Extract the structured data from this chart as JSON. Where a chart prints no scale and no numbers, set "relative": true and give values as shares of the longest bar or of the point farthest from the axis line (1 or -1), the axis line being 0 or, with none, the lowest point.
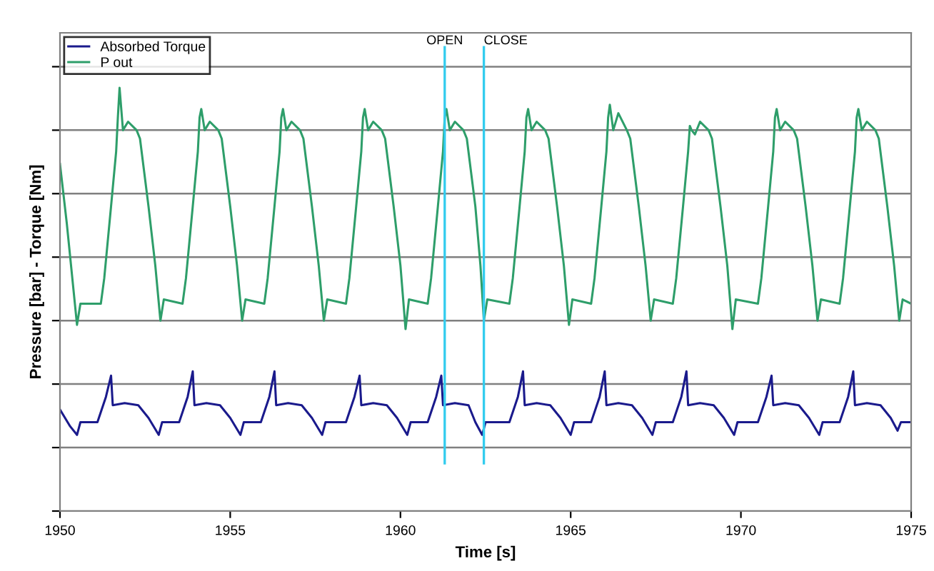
{
  "chart_data": {
    "type": "line",
    "relative": true,
    "xlabel": "Time [s]",
    "ylabel": "Pressure [bar] - Torque [Nm]",
    "xlim": [
      1950,
      1975
    ],
    "xticks": [
      1950,
      1955,
      1960,
      1965,
      1970,
      1975
    ],
    "grid": "y",
    "legend": "top left",
    "marker": "none",
    "line_style": "solid",
    "ref_lines": [
      {
        "axis": "x",
        "value": 1961.3,
        "label": "OPEN",
        "color": "#33ccee"
      },
      {
        "axis": "x",
        "value": 1962.45,
        "label": "CLOSE",
        "color": "#33ccee"
      }
    ],
    "series": [
      {
        "name": "Absorbed Torque",
        "color": "#1a1a8c",
        "x": [
          1950.0,
          1950.3,
          1950.5,
          1950.6,
          1951.1,
          1951.35,
          1951.5,
          1951.55,
          1951.9,
          1952.3,
          1952.6,
          1952.9,
          1953.0,
          1953.5,
          1953.75,
          1953.9,
          1953.95,
          1954.3,
          1954.7,
          1955.0,
          1955.3,
          1955.4,
          1955.9,
          1956.15,
          1956.3,
          1956.35,
          1956.7,
          1957.1,
          1957.4,
          1957.7,
          1957.8,
          1958.4,
          1958.65,
          1958.8,
          1958.85,
          1959.2,
          1959.6,
          1959.9,
          1960.2,
          1960.3,
          1960.8,
          1961.05,
          1961.2,
          1961.25,
          1961.6,
          1962.0,
          1962.2,
          1962.4,
          1962.5,
          1963.2,
          1963.45,
          1963.6,
          1963.65,
          1964.0,
          1964.4,
          1964.7,
          1965.0,
          1965.1,
          1965.6,
          1965.85,
          1966.0,
          1966.05,
          1966.4,
          1966.8,
          1967.1,
          1967.4,
          1967.5,
          1968.0,
          1968.25,
          1968.4,
          1968.45,
          1968.8,
          1969.2,
          1969.5,
          1969.8,
          1969.9,
          1970.5,
          1970.75,
          1970.9,
          1970.95,
          1971.3,
          1971.7,
          1972.0,
          1972.3,
          1972.4,
          1972.9,
          1973.15,
          1973.3,
          1973.35,
          1973.7,
          1974.1,
          1974.4,
          1974.6,
          1974.7,
          1975.0
        ],
        "values": [
          0.24,
          0.2,
          0.18,
          0.21,
          0.21,
          0.27,
          0.32,
          0.25,
          0.255,
          0.25,
          0.22,
          0.18,
          0.21,
          0.21,
          0.27,
          0.33,
          0.25,
          0.255,
          0.25,
          0.22,
          0.18,
          0.21,
          0.21,
          0.27,
          0.33,
          0.25,
          0.255,
          0.25,
          0.22,
          0.18,
          0.21,
          0.21,
          0.27,
          0.32,
          0.25,
          0.255,
          0.25,
          0.22,
          0.18,
          0.21,
          0.21,
          0.27,
          0.32,
          0.25,
          0.255,
          0.25,
          0.21,
          0.18,
          0.21,
          0.21,
          0.27,
          0.33,
          0.25,
          0.255,
          0.25,
          0.22,
          0.18,
          0.21,
          0.21,
          0.27,
          0.33,
          0.25,
          0.255,
          0.25,
          0.22,
          0.18,
          0.21,
          0.21,
          0.27,
          0.33,
          0.25,
          0.255,
          0.25,
          0.22,
          0.18,
          0.21,
          0.21,
          0.27,
          0.32,
          0.25,
          0.255,
          0.25,
          0.22,
          0.18,
          0.21,
          0.21,
          0.27,
          0.33,
          0.25,
          0.255,
          0.25,
          0.22,
          0.19,
          0.21,
          0.21
        ]
      },
      {
        "name": "P out",
        "color": "#2e9e6a",
        "x": [
          1950.0,
          1950.2,
          1950.4,
          1950.5,
          1950.6,
          1951.2,
          1951.3,
          1951.5,
          1951.65,
          1951.7,
          1951.75,
          1951.85,
          1952.0,
          1952.25,
          1952.35,
          1952.6,
          1952.8,
          1952.95,
          1953.05,
          1953.6,
          1953.7,
          1953.9,
          1954.05,
          1954.1,
          1954.15,
          1954.25,
          1954.4,
          1954.65,
          1954.75,
          1955.0,
          1955.2,
          1955.35,
          1955.45,
          1956.0,
          1956.1,
          1956.3,
          1956.45,
          1956.5,
          1956.55,
          1956.65,
          1956.8,
          1957.05,
          1957.15,
          1957.4,
          1957.6,
          1957.75,
          1957.85,
          1958.4,
          1958.5,
          1958.7,
          1958.85,
          1958.9,
          1958.95,
          1959.05,
          1959.2,
          1959.45,
          1959.55,
          1959.8,
          1960.0,
          1960.15,
          1960.25,
          1960.8,
          1960.9,
          1961.1,
          1961.25,
          1961.3,
          1961.35,
          1961.45,
          1961.6,
          1961.85,
          1961.95,
          1962.2,
          1962.35,
          1962.45,
          1962.55,
          1963.2,
          1963.3,
          1963.5,
          1963.65,
          1963.7,
          1963.75,
          1963.85,
          1964.0,
          1964.25,
          1964.35,
          1964.6,
          1964.8,
          1964.95,
          1965.05,
          1965.6,
          1965.7,
          1965.9,
          1966.05,
          1966.1,
          1966.15,
          1966.25,
          1966.4,
          1966.65,
          1966.75,
          1967.0,
          1967.2,
          1967.35,
          1967.45,
          1968.0,
          1968.1,
          1968.3,
          1968.45,
          1968.5,
          1968.55,
          1968.65,
          1968.8,
          1969.05,
          1969.15,
          1969.4,
          1969.6,
          1969.75,
          1969.85,
          1970.5,
          1970.6,
          1970.8,
          1970.95,
          1971.0,
          1971.05,
          1971.15,
          1971.3,
          1971.55,
          1971.65,
          1971.9,
          1972.1,
          1972.25,
          1972.35,
          1972.9,
          1973.0,
          1973.2,
          1973.35,
          1973.4,
          1973.45,
          1973.55,
          1973.7,
          1973.95,
          1974.05,
          1974.3,
          1974.5,
          1974.65,
          1974.75,
          1975.0
        ],
        "values": [
          0.82,
          0.68,
          0.52,
          0.44,
          0.49,
          0.49,
          0.55,
          0.72,
          0.85,
          0.93,
          1.0,
          0.9,
          0.92,
          0.9,
          0.88,
          0.72,
          0.58,
          0.45,
          0.5,
          0.49,
          0.55,
          0.72,
          0.85,
          0.93,
          0.95,
          0.9,
          0.92,
          0.9,
          0.88,
          0.72,
          0.58,
          0.45,
          0.5,
          0.49,
          0.55,
          0.72,
          0.85,
          0.93,
          0.95,
          0.9,
          0.92,
          0.9,
          0.88,
          0.72,
          0.58,
          0.45,
          0.5,
          0.49,
          0.55,
          0.72,
          0.85,
          0.93,
          0.95,
          0.9,
          0.92,
          0.9,
          0.88,
          0.72,
          0.58,
          0.43,
          0.5,
          0.49,
          0.55,
          0.72,
          0.85,
          0.93,
          0.95,
          0.9,
          0.92,
          0.9,
          0.88,
          0.72,
          0.58,
          0.45,
          0.5,
          0.49,
          0.55,
          0.72,
          0.85,
          0.93,
          0.95,
          0.9,
          0.92,
          0.9,
          0.88,
          0.72,
          0.58,
          0.44,
          0.5,
          0.49,
          0.55,
          0.72,
          0.85,
          0.93,
          0.96,
          0.9,
          0.94,
          0.9,
          0.88,
          0.72,
          0.58,
          0.45,
          0.5,
          0.49,
          0.55,
          0.72,
          0.85,
          0.91,
          0.9,
          0.89,
          0.92,
          0.9,
          0.88,
          0.72,
          0.58,
          0.43,
          0.5,
          0.49,
          0.55,
          0.72,
          0.85,
          0.93,
          0.95,
          0.9,
          0.92,
          0.9,
          0.88,
          0.72,
          0.58,
          0.45,
          0.5,
          0.49,
          0.55,
          0.72,
          0.85,
          0.93,
          0.95,
          0.9,
          0.92,
          0.9,
          0.88,
          0.72,
          0.58,
          0.45,
          0.5,
          0.49
        ]
      }
    ]
  }
}
